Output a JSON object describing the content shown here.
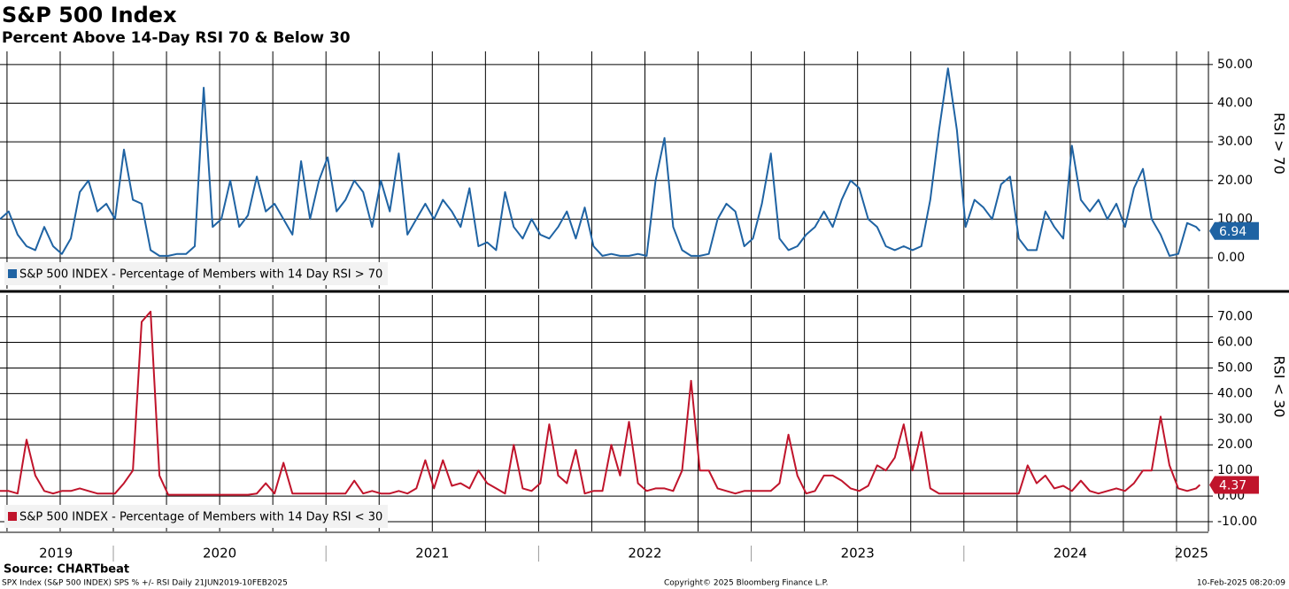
{
  "title": "S&P 500 Index",
  "subtitle": "Percent Above 14-Day RSI 70 & Below 30",
  "source": "Source: CHARTbeat",
  "footer_left": "SPX Index (S&P 500 INDEX) SPS % +/- RSI  Daily 21JUN2019-10FEB2025",
  "copyright": "Copyright© 2025 Bloomberg Finance L.P.",
  "timestamp": "10-Feb-2025 08:20:09",
  "chart_data": [
    {
      "type": "line",
      "ylabel": "RSI > 70",
      "x": [
        2019.467,
        2019.508,
        2019.55,
        2019.592,
        2019.633,
        2019.675,
        2019.717,
        2019.758,
        2019.8,
        2019.842,
        2019.883,
        2019.925,
        2019.967,
        2020.008,
        2020.05,
        2020.092,
        2020.133,
        2020.175,
        2020.217,
        2020.258,
        2020.3,
        2020.342,
        2020.383,
        2020.425,
        2020.467,
        2020.508,
        2020.55,
        2020.592,
        2020.633,
        2020.675,
        2020.717,
        2020.758,
        2020.8,
        2020.842,
        2020.883,
        2020.925,
        2020.967,
        2021.008,
        2021.05,
        2021.092,
        2021.133,
        2021.175,
        2021.217,
        2021.258,
        2021.3,
        2021.342,
        2021.383,
        2021.425,
        2021.467,
        2021.508,
        2021.55,
        2021.592,
        2021.633,
        2021.675,
        2021.717,
        2021.758,
        2021.8,
        2021.842,
        2021.883,
        2021.925,
        2021.967,
        2022.008,
        2022.05,
        2022.092,
        2022.133,
        2022.175,
        2022.217,
        2022.258,
        2022.3,
        2022.342,
        2022.383,
        2022.425,
        2022.467,
        2022.508,
        2022.55,
        2022.592,
        2022.633,
        2022.675,
        2022.717,
        2022.758,
        2022.8,
        2022.842,
        2022.883,
        2022.925,
        2022.967,
        2023.008,
        2023.05,
        2023.092,
        2023.133,
        2023.175,
        2023.217,
        2023.258,
        2023.3,
        2023.342,
        2023.383,
        2023.425,
        2023.467,
        2023.508,
        2023.55,
        2023.592,
        2023.633,
        2023.675,
        2023.717,
        2023.758,
        2023.8,
        2023.842,
        2023.883,
        2023.925,
        2023.967,
        2024.008,
        2024.05,
        2024.092,
        2024.133,
        2024.175,
        2024.217,
        2024.258,
        2024.3,
        2024.342,
        2024.383,
        2024.425,
        2024.467,
        2024.508,
        2024.55,
        2024.592,
        2024.633,
        2024.675,
        2024.717,
        2024.758,
        2024.8,
        2024.842,
        2024.883,
        2024.925,
        2024.967,
        2025.008,
        2025.05,
        2025.092,
        2025.11
      ],
      "xlim": [
        2019.467,
        2025.15
      ],
      "xgrid": [
        2019.5,
        2019.75,
        2020,
        2020.25,
        2020.5,
        2020.75,
        2021,
        2021.25,
        2021.5,
        2021.75,
        2022,
        2022.25,
        2022.5,
        2022.75,
        2023,
        2023.25,
        2023.5,
        2023.75,
        2024,
        2024.25,
        2024.5,
        2024.75,
        2025
      ],
      "ylim": [
        -8,
        53.4
      ],
      "yticks": [
        {
          "value": 0,
          "label": "0.00"
        },
        {
          "value": 10,
          "label": "10.00"
        },
        {
          "value": 20,
          "label": "20.00"
        },
        {
          "value": 30,
          "label": "30.00"
        },
        {
          "value": 40,
          "label": "40.00"
        },
        {
          "value": 50,
          "label": "50.00"
        }
      ],
      "series": [
        {
          "name": "S&P 500 INDEX - Percentage of Members with 14 Day RSI > 70",
          "color": "#1f63a3",
          "values": [
            10,
            12,
            6,
            3,
            2,
            8,
            3,
            1,
            5,
            17,
            20,
            12,
            14,
            10,
            28,
            15,
            14,
            2,
            0.5,
            0.5,
            1,
            1,
            3,
            44,
            8,
            10,
            20,
            8,
            11,
            21,
            12,
            14,
            10,
            6,
            25,
            10,
            20,
            26,
            12,
            15,
            20,
            17,
            8,
            20,
            12,
            27,
            6,
            10,
            14,
            10,
            15,
            12,
            8,
            18,
            3,
            4,
            2,
            17,
            8,
            5,
            10,
            6,
            5,
            8,
            12,
            5,
            13,
            3,
            0.5,
            1,
            0.5,
            0.5,
            1,
            0.5,
            20,
            31,
            8,
            2,
            0.5,
            0.5,
            1,
            10,
            14,
            12,
            3,
            5,
            14,
            27,
            5,
            2,
            3,
            6,
            8,
            12,
            8,
            15,
            20,
            18,
            10,
            8,
            3,
            2,
            3,
            2,
            3,
            15,
            33,
            49,
            33,
            8,
            15,
            13,
            10,
            19,
            21,
            5,
            2,
            2,
            12,
            8,
            5,
            29,
            15,
            12,
            15,
            10,
            14,
            8,
            18,
            23,
            10,
            6,
            0.5,
            1,
            9,
            8,
            6.94
          ]
        }
      ]
    },
    {
      "type": "line",
      "ylabel": "RSI < 30",
      "x": [
        2019.467,
        2019.508,
        2019.55,
        2019.592,
        2019.633,
        2019.675,
        2019.717,
        2019.758,
        2019.8,
        2019.842,
        2019.883,
        2019.925,
        2019.967,
        2020.008,
        2020.05,
        2020.092,
        2020.133,
        2020.175,
        2020.217,
        2020.258,
        2020.3,
        2020.342,
        2020.383,
        2020.425,
        2020.467,
        2020.508,
        2020.55,
        2020.592,
        2020.633,
        2020.675,
        2020.717,
        2020.758,
        2020.8,
        2020.842,
        2020.883,
        2020.925,
        2020.967,
        2021.008,
        2021.05,
        2021.092,
        2021.133,
        2021.175,
        2021.217,
        2021.258,
        2021.3,
        2021.342,
        2021.383,
        2021.425,
        2021.467,
        2021.508,
        2021.55,
        2021.592,
        2021.633,
        2021.675,
        2021.717,
        2021.758,
        2021.8,
        2021.842,
        2021.883,
        2021.925,
        2021.967,
        2022.008,
        2022.05,
        2022.092,
        2022.133,
        2022.175,
        2022.217,
        2022.258,
        2022.3,
        2022.342,
        2022.383,
        2022.425,
        2022.467,
        2022.508,
        2022.55,
        2022.592,
        2022.633,
        2022.675,
        2022.717,
        2022.758,
        2022.8,
        2022.842,
        2022.883,
        2022.925,
        2022.967,
        2023.008,
        2023.05,
        2023.092,
        2023.133,
        2023.175,
        2023.217,
        2023.258,
        2023.3,
        2023.342,
        2023.383,
        2023.425,
        2023.467,
        2023.508,
        2023.55,
        2023.592,
        2023.633,
        2023.675,
        2023.717,
        2023.758,
        2023.8,
        2023.842,
        2023.883,
        2023.925,
        2023.967,
        2024.008,
        2024.05,
        2024.092,
        2024.133,
        2024.175,
        2024.217,
        2024.258,
        2024.3,
        2024.342,
        2024.383,
        2024.425,
        2024.467,
        2024.508,
        2024.55,
        2024.592,
        2024.633,
        2024.675,
        2024.717,
        2024.758,
        2024.8,
        2024.842,
        2024.883,
        2024.925,
        2024.967,
        2025.008,
        2025.05,
        2025.092,
        2025.11
      ],
      "xlim": [
        2019.467,
        2025.15
      ],
      "xgrid": [
        2019.5,
        2019.75,
        2020,
        2020.25,
        2020.5,
        2020.75,
        2021,
        2021.25,
        2021.5,
        2021.75,
        2022,
        2022.25,
        2022.5,
        2022.75,
        2023,
        2023.25,
        2023.5,
        2023.75,
        2024,
        2024.25,
        2024.5,
        2024.75,
        2025
      ],
      "xticks": [
        {
          "value": 2019.73,
          "label": "2019"
        },
        {
          "value": 2020.5,
          "label": "2020"
        },
        {
          "value": 2021.5,
          "label": "2021"
        },
        {
          "value": 2022.5,
          "label": "2022"
        },
        {
          "value": 2023.5,
          "label": "2023"
        },
        {
          "value": 2024.5,
          "label": "2024"
        },
        {
          "value": 2025.07,
          "label": "2025"
        }
      ],
      "ylim": [
        -13.8,
        78.5
      ],
      "yticks": [
        {
          "value": -10,
          "label": "-10.00"
        },
        {
          "value": 0,
          "label": "0.00"
        },
        {
          "value": 10,
          "label": "10.00"
        },
        {
          "value": 20,
          "label": "20.00"
        },
        {
          "value": 30,
          "label": "30.00"
        },
        {
          "value": 40,
          "label": "40.00"
        },
        {
          "value": 50,
          "label": "50.00"
        },
        {
          "value": 60,
          "label": "60.00"
        },
        {
          "value": 70,
          "label": "70.00"
        }
      ],
      "series": [
        {
          "name": "S&P 500 INDEX - Percentage of Members with 14 Day RSI < 30",
          "color": "#c0142b",
          "values": [
            2,
            2,
            1,
            22,
            8,
            2,
            1,
            2,
            2,
            3,
            2,
            1,
            1,
            1,
            5,
            10,
            68,
            72,
            8,
            0.5,
            0.5,
            0.5,
            0.5,
            0.5,
            0.5,
            0.5,
            0.5,
            0.5,
            0.5,
            1,
            5,
            1,
            13,
            1,
            1,
            1,
            1,
            1,
            1,
            1,
            6,
            1,
            2,
            1,
            1,
            2,
            1,
            3,
            14,
            3,
            14,
            4,
            5,
            3,
            10,
            5,
            3,
            1,
            20,
            3,
            2,
            5,
            28,
            8,
            5,
            18,
            1,
            2,
            2,
            20,
            8,
            29,
            5,
            2,
            3,
            3,
            2,
            10,
            45,
            10,
            10,
            3,
            2,
            1,
            2,
            2,
            2,
            2,
            5,
            24,
            8,
            1,
            2,
            8,
            8,
            6,
            3,
            2,
            4,
            12,
            10,
            15,
            28,
            10,
            25,
            3,
            1,
            1,
            1,
            1,
            1,
            1,
            1,
            1,
            1,
            1,
            12,
            5,
            8,
            3,
            4,
            2,
            6,
            2,
            1,
            2,
            3,
            2,
            5,
            10,
            10,
            31,
            12,
            3,
            2,
            3,
            4.37
          ]
        }
      ]
    }
  ]
}
